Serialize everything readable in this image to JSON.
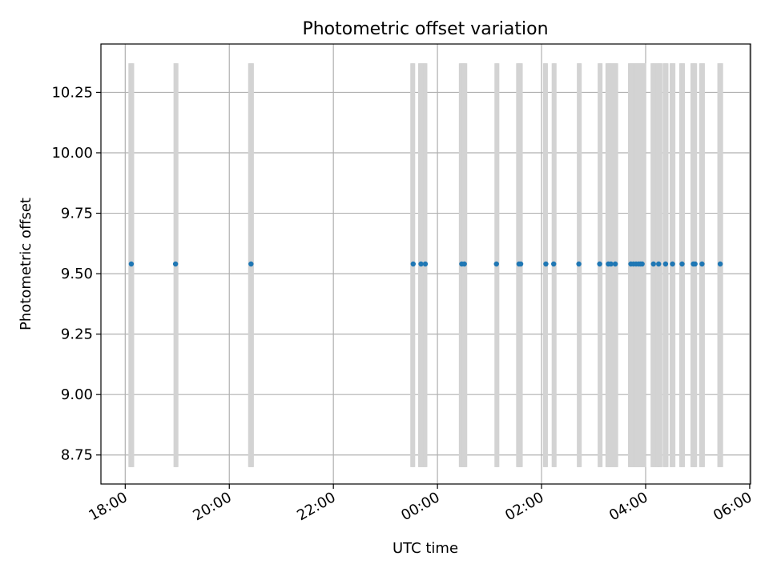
{
  "chart_data": {
    "type": "scatter",
    "title": "Photometric offset variation",
    "xlabel": "UTC time",
    "ylabel": "Photometric offset",
    "grid": true,
    "x_unit": "UTC",
    "xlim": [
      "17:32",
      "06:01"
    ],
    "ylim": [
      8.63,
      10.45
    ],
    "x_ticks": [
      "18:00",
      "20:00",
      "22:00",
      "00:00",
      "02:00",
      "04:00",
      "06:00"
    ],
    "y_ticks": [
      "8.75",
      "9.00",
      "9.25",
      "9.50",
      "9.75",
      "10.00",
      "10.25"
    ],
    "exposure_band": [
      8.7,
      10.37
    ],
    "exposure_color": "#d3d3d3",
    "point_color": "#1f77b4",
    "exposures_utc": [
      "18:06",
      "18:07",
      "18:08",
      "18:58",
      "18:59",
      "20:24",
      "20:25",
      "20:26",
      "23:31",
      "23:32",
      "23:40",
      "23:41",
      "23:42",
      "23:45",
      "23:46",
      "00:27",
      "00:28",
      "00:29",
      "00:30",
      "00:31",
      "00:32",
      "01:08",
      "01:09",
      "01:33",
      "01:34",
      "01:35",
      "01:36",
      "02:04",
      "02:05",
      "02:14",
      "02:15",
      "02:43",
      "02:44",
      "03:07",
      "03:08",
      "03:16",
      "03:17",
      "03:18",
      "03:19",
      "03:20",
      "03:21",
      "03:24",
      "03:25",
      "03:26",
      "03:42",
      "03:43",
      "03:44",
      "03:45",
      "03:46",
      "03:47",
      "03:48",
      "03:49",
      "03:50",
      "03:51",
      "03:52",
      "03:53",
      "03:54",
      "03:55",
      "03:56",
      "03:57",
      "03:58",
      "04:08",
      "04:09",
      "04:10",
      "04:11",
      "04:14",
      "04:15",
      "04:16",
      "04:17",
      "04:22",
      "04:23",
      "04:24",
      "04:30",
      "04:31",
      "04:32",
      "04:41",
      "04:42",
      "04:43",
      "04:54",
      "04:55",
      "04:56",
      "04:57",
      "05:04",
      "05:05",
      "05:06",
      "05:25",
      "05:26",
      "05:27"
    ],
    "series": [
      {
        "x": [
          "18:07",
          "18:58",
          "20:25",
          "23:32",
          "23:41",
          "23:46",
          "00:28",
          "00:31",
          "01:08",
          "01:34",
          "01:36",
          "02:05",
          "02:14",
          "02:43",
          "03:07",
          "03:17",
          "03:20",
          "03:25",
          "03:43",
          "03:46",
          "03:49",
          "03:52",
          "03:54",
          "03:56",
          "04:09",
          "04:15",
          "04:23",
          "04:31",
          "04:42",
          "04:55",
          "04:57",
          "05:05",
          "05:26"
        ],
        "y": [
          9.54,
          9.54,
          9.54,
          9.54,
          9.54,
          9.54,
          9.54,
          9.54,
          9.54,
          9.54,
          9.54,
          9.54,
          9.54,
          9.54,
          9.54,
          9.54,
          9.54,
          9.54,
          9.54,
          9.54,
          9.54,
          9.54,
          9.54,
          9.54,
          9.54,
          9.54,
          9.54,
          9.54,
          9.54,
          9.54,
          9.54,
          9.54,
          9.54
        ]
      }
    ]
  }
}
